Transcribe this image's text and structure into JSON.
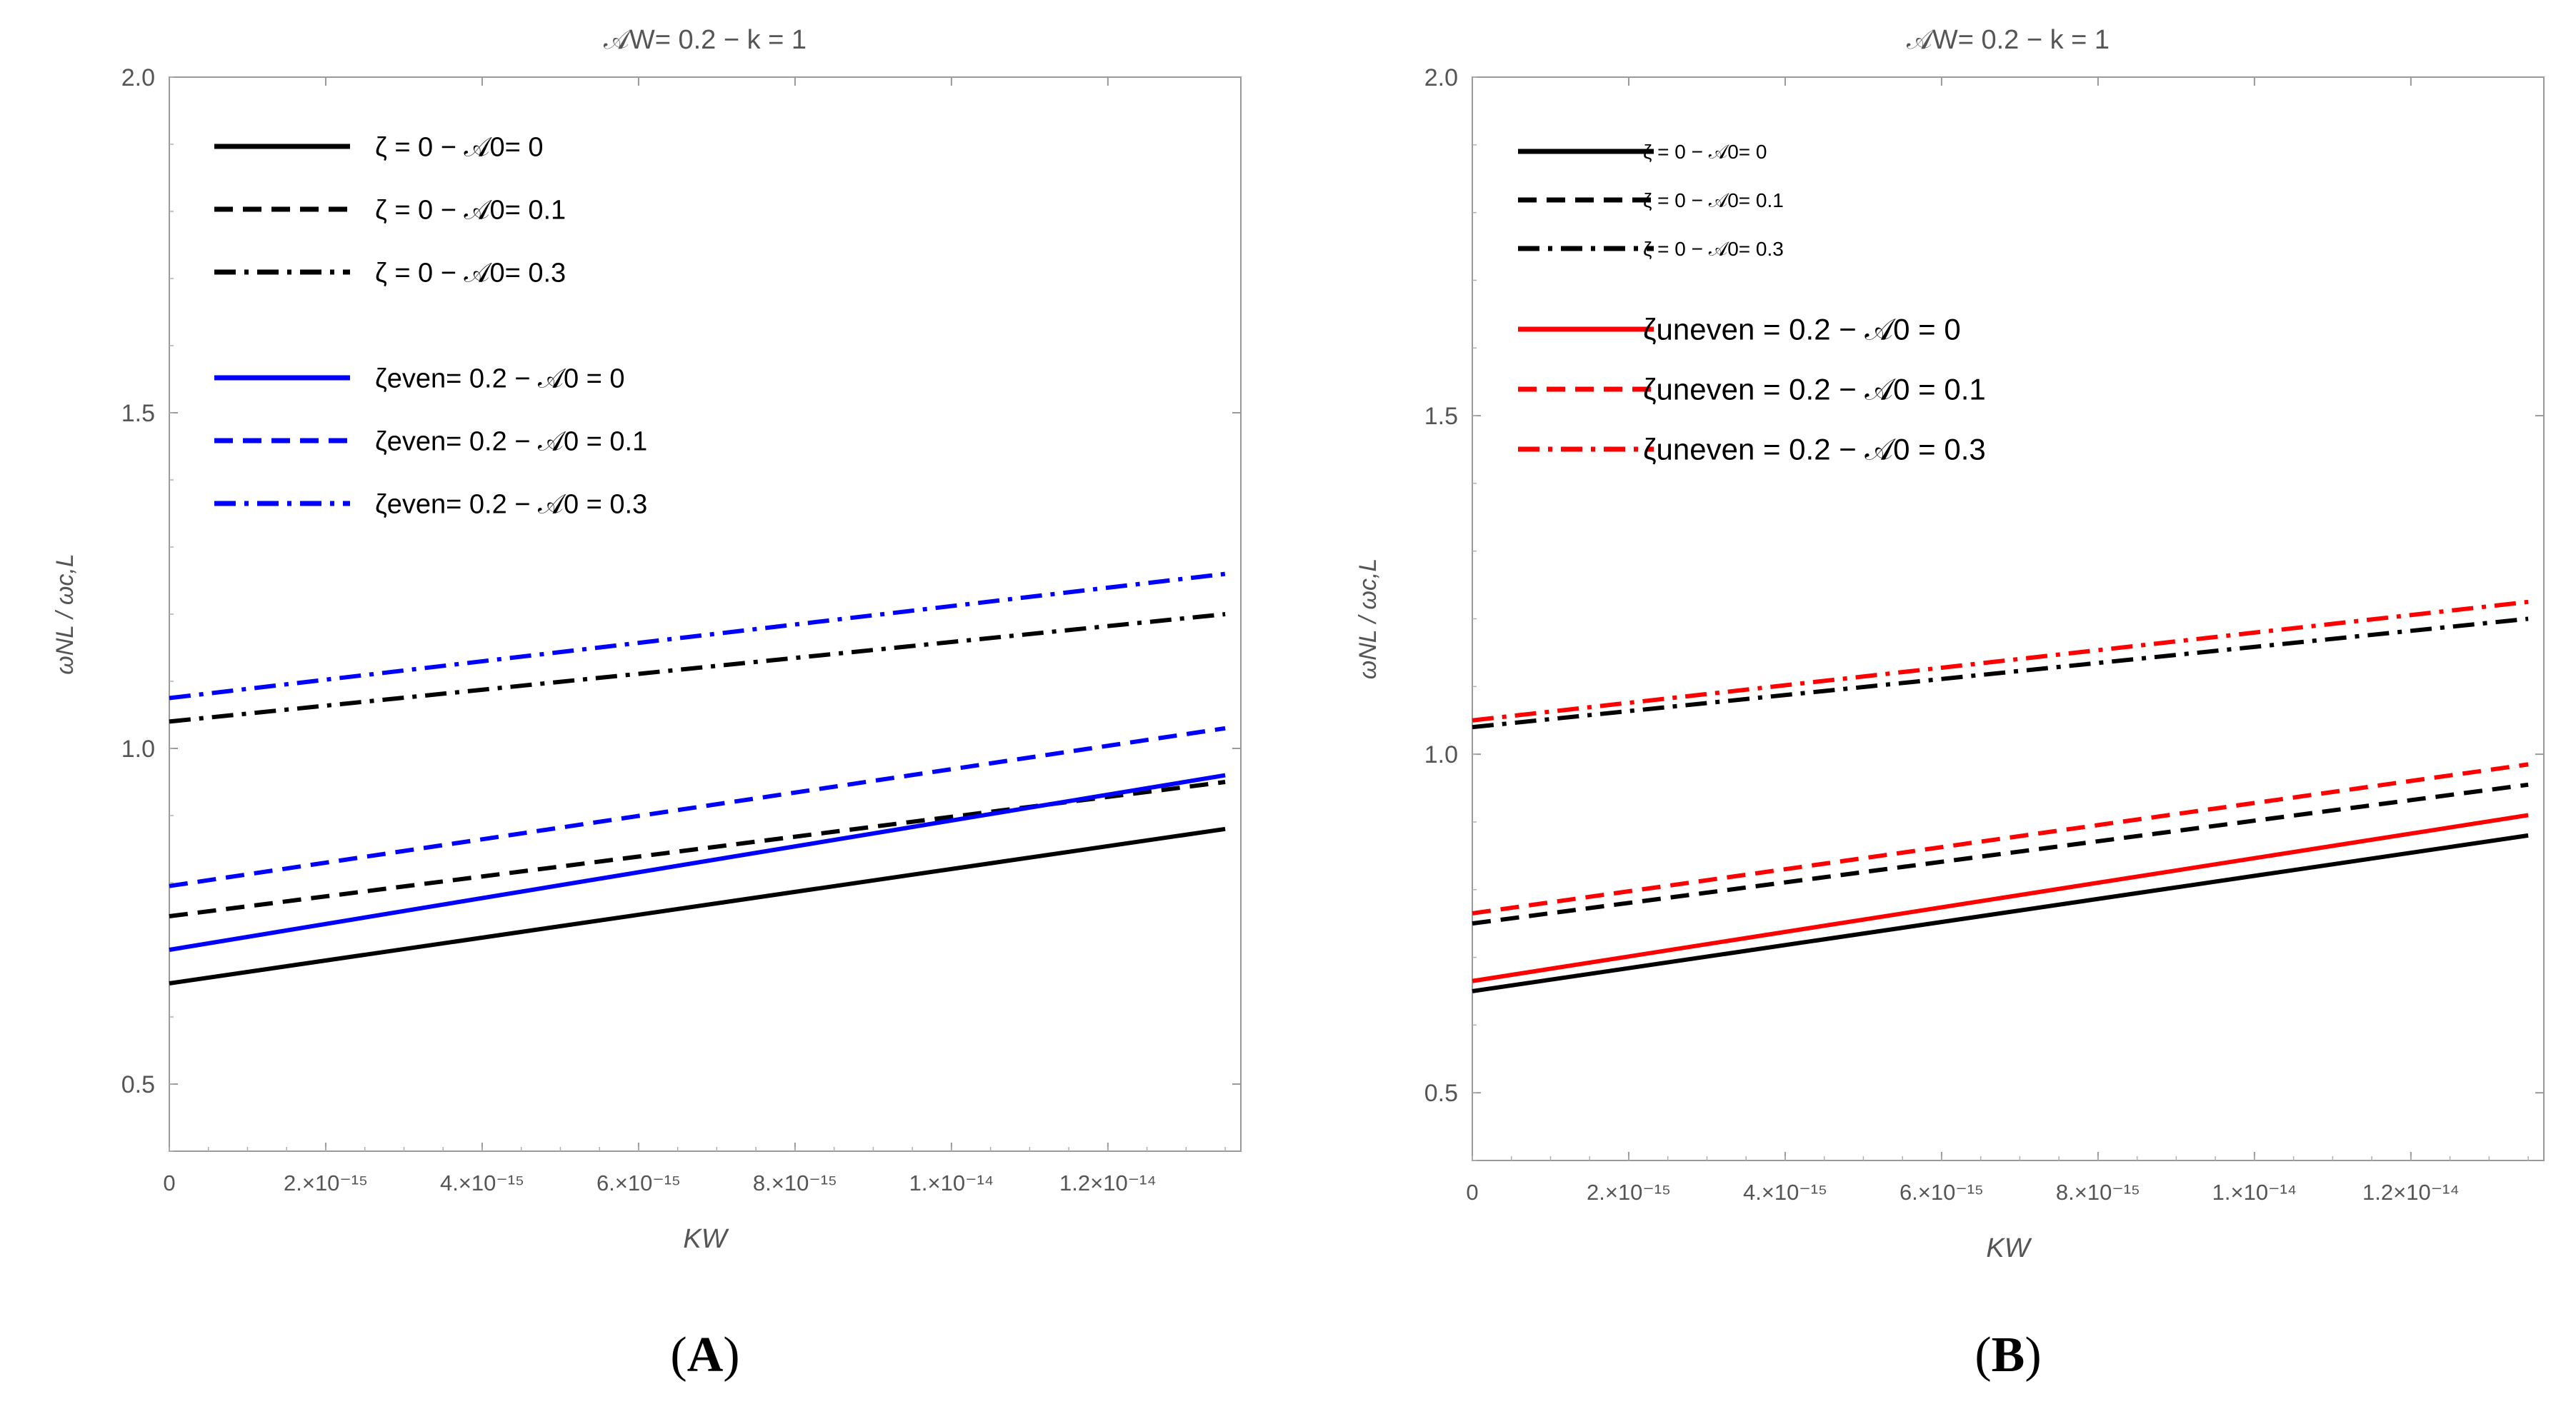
{
  "chart_data": [
    {
      "type": "line",
      "panel_label": "A",
      "title": "𝒜W= 0.2 −  k = 1",
      "xlabel": "KW",
      "ylabel": "ωNL / ωc,L",
      "xlim": [
        0,
        1.37e-14
      ],
      "ylim": [
        0.4,
        2.0
      ],
      "yticks": [
        0.5,
        1.0,
        1.5,
        2.0
      ],
      "ytick_labels": [
        "0.5",
        "1.0",
        "1.5",
        "2.0"
      ],
      "xticks": [
        0,
        2e-15,
        4e-15,
        6e-15,
        8e-15,
        1e-14,
        1.2e-14
      ],
      "xtick_labels": [
        "0",
        "2.×10⁻¹⁵",
        "4.×10⁻¹⁵",
        "6.×10⁻¹⁵",
        "8.×10⁻¹⁵",
        "1.×10⁻¹⁴",
        "1.2×10⁻¹⁴"
      ],
      "x": [
        0,
        1.35e-14
      ],
      "series": [
        {
          "name": "ζ = 0 −  𝒜0=  0",
          "color": "#000000",
          "dash": "solid",
          "values": [
            0.65,
            0.88
          ]
        },
        {
          "name": "ζ = 0 −  𝒜0=  0.1",
          "color": "#000000",
          "dash": "dashed",
          "values": [
            0.75,
            0.95
          ]
        },
        {
          "name": "ζ = 0 −  𝒜0=  0.3",
          "color": "#000000",
          "dash": "dashdot",
          "values": [
            1.04,
            1.2
          ]
        },
        {
          "name": "ζeven= 0.2  − 𝒜0 =  0",
          "color": "#0000ff",
          "dash": "solid",
          "values": [
            0.7,
            0.96
          ]
        },
        {
          "name": "ζeven= 0.2  − 𝒜0 =  0.1",
          "color": "#0000ff",
          "dash": "dashed",
          "values": [
            0.795,
            1.03
          ]
        },
        {
          "name": "ζeven= 0.2  − 𝒜0 =  0.3",
          "color": "#0000ff",
          "dash": "dashdot",
          "values": [
            1.075,
            1.26
          ]
        }
      ]
    },
    {
      "type": "line",
      "panel_label": "B",
      "title": "𝒜W= 0.2 −  k = 1",
      "xlabel": "KW",
      "ylabel": "ωNL / ωc,L",
      "xlim": [
        0,
        1.37e-14
      ],
      "ylim": [
        0.4,
        2.0
      ],
      "yticks": [
        0.5,
        1.0,
        1.5,
        2.0
      ],
      "ytick_labels": [
        "0.5",
        "1.0",
        "1.5",
        "2.0"
      ],
      "xticks": [
        0,
        2e-15,
        4e-15,
        6e-15,
        8e-15,
        1e-14,
        1.2e-14
      ],
      "xtick_labels": [
        "0",
        "2.×10⁻¹⁵",
        "4.×10⁻¹⁵",
        "6.×10⁻¹⁵",
        "8.×10⁻¹⁵",
        "1.×10⁻¹⁴",
        "1.2×10⁻¹⁴"
      ],
      "x": [
        0,
        1.35e-14
      ],
      "series": [
        {
          "name": "ζ = 0 −  𝒜0=  0",
          "color": "#000000",
          "dash": "solid",
          "values": [
            0.65,
            0.88
          ]
        },
        {
          "name": "ζ = 0 −  𝒜0=  0.1",
          "color": "#000000",
          "dash": "dashed",
          "values": [
            0.75,
            0.955
          ]
        },
        {
          "name": "ζ = 0 −  𝒜0=  0.3",
          "color": "#000000",
          "dash": "dashdot",
          "values": [
            1.04,
            1.2
          ]
        },
        {
          "name": "ζuneven = 0.2 −  𝒜0 =  0",
          "color": "#ff0000",
          "dash": "solid",
          "values": [
            0.665,
            0.91
          ]
        },
        {
          "name": "ζuneven = 0.2 −  𝒜0 =  0.1",
          "color": "#ff0000",
          "dash": "dashed",
          "values": [
            0.765,
            0.985
          ]
        },
        {
          "name": "ζuneven = 0.2 −  𝒜0 =  0.3",
          "color": "#ff0000",
          "dash": "dashdot",
          "values": [
            1.05,
            1.225
          ]
        }
      ]
    }
  ]
}
